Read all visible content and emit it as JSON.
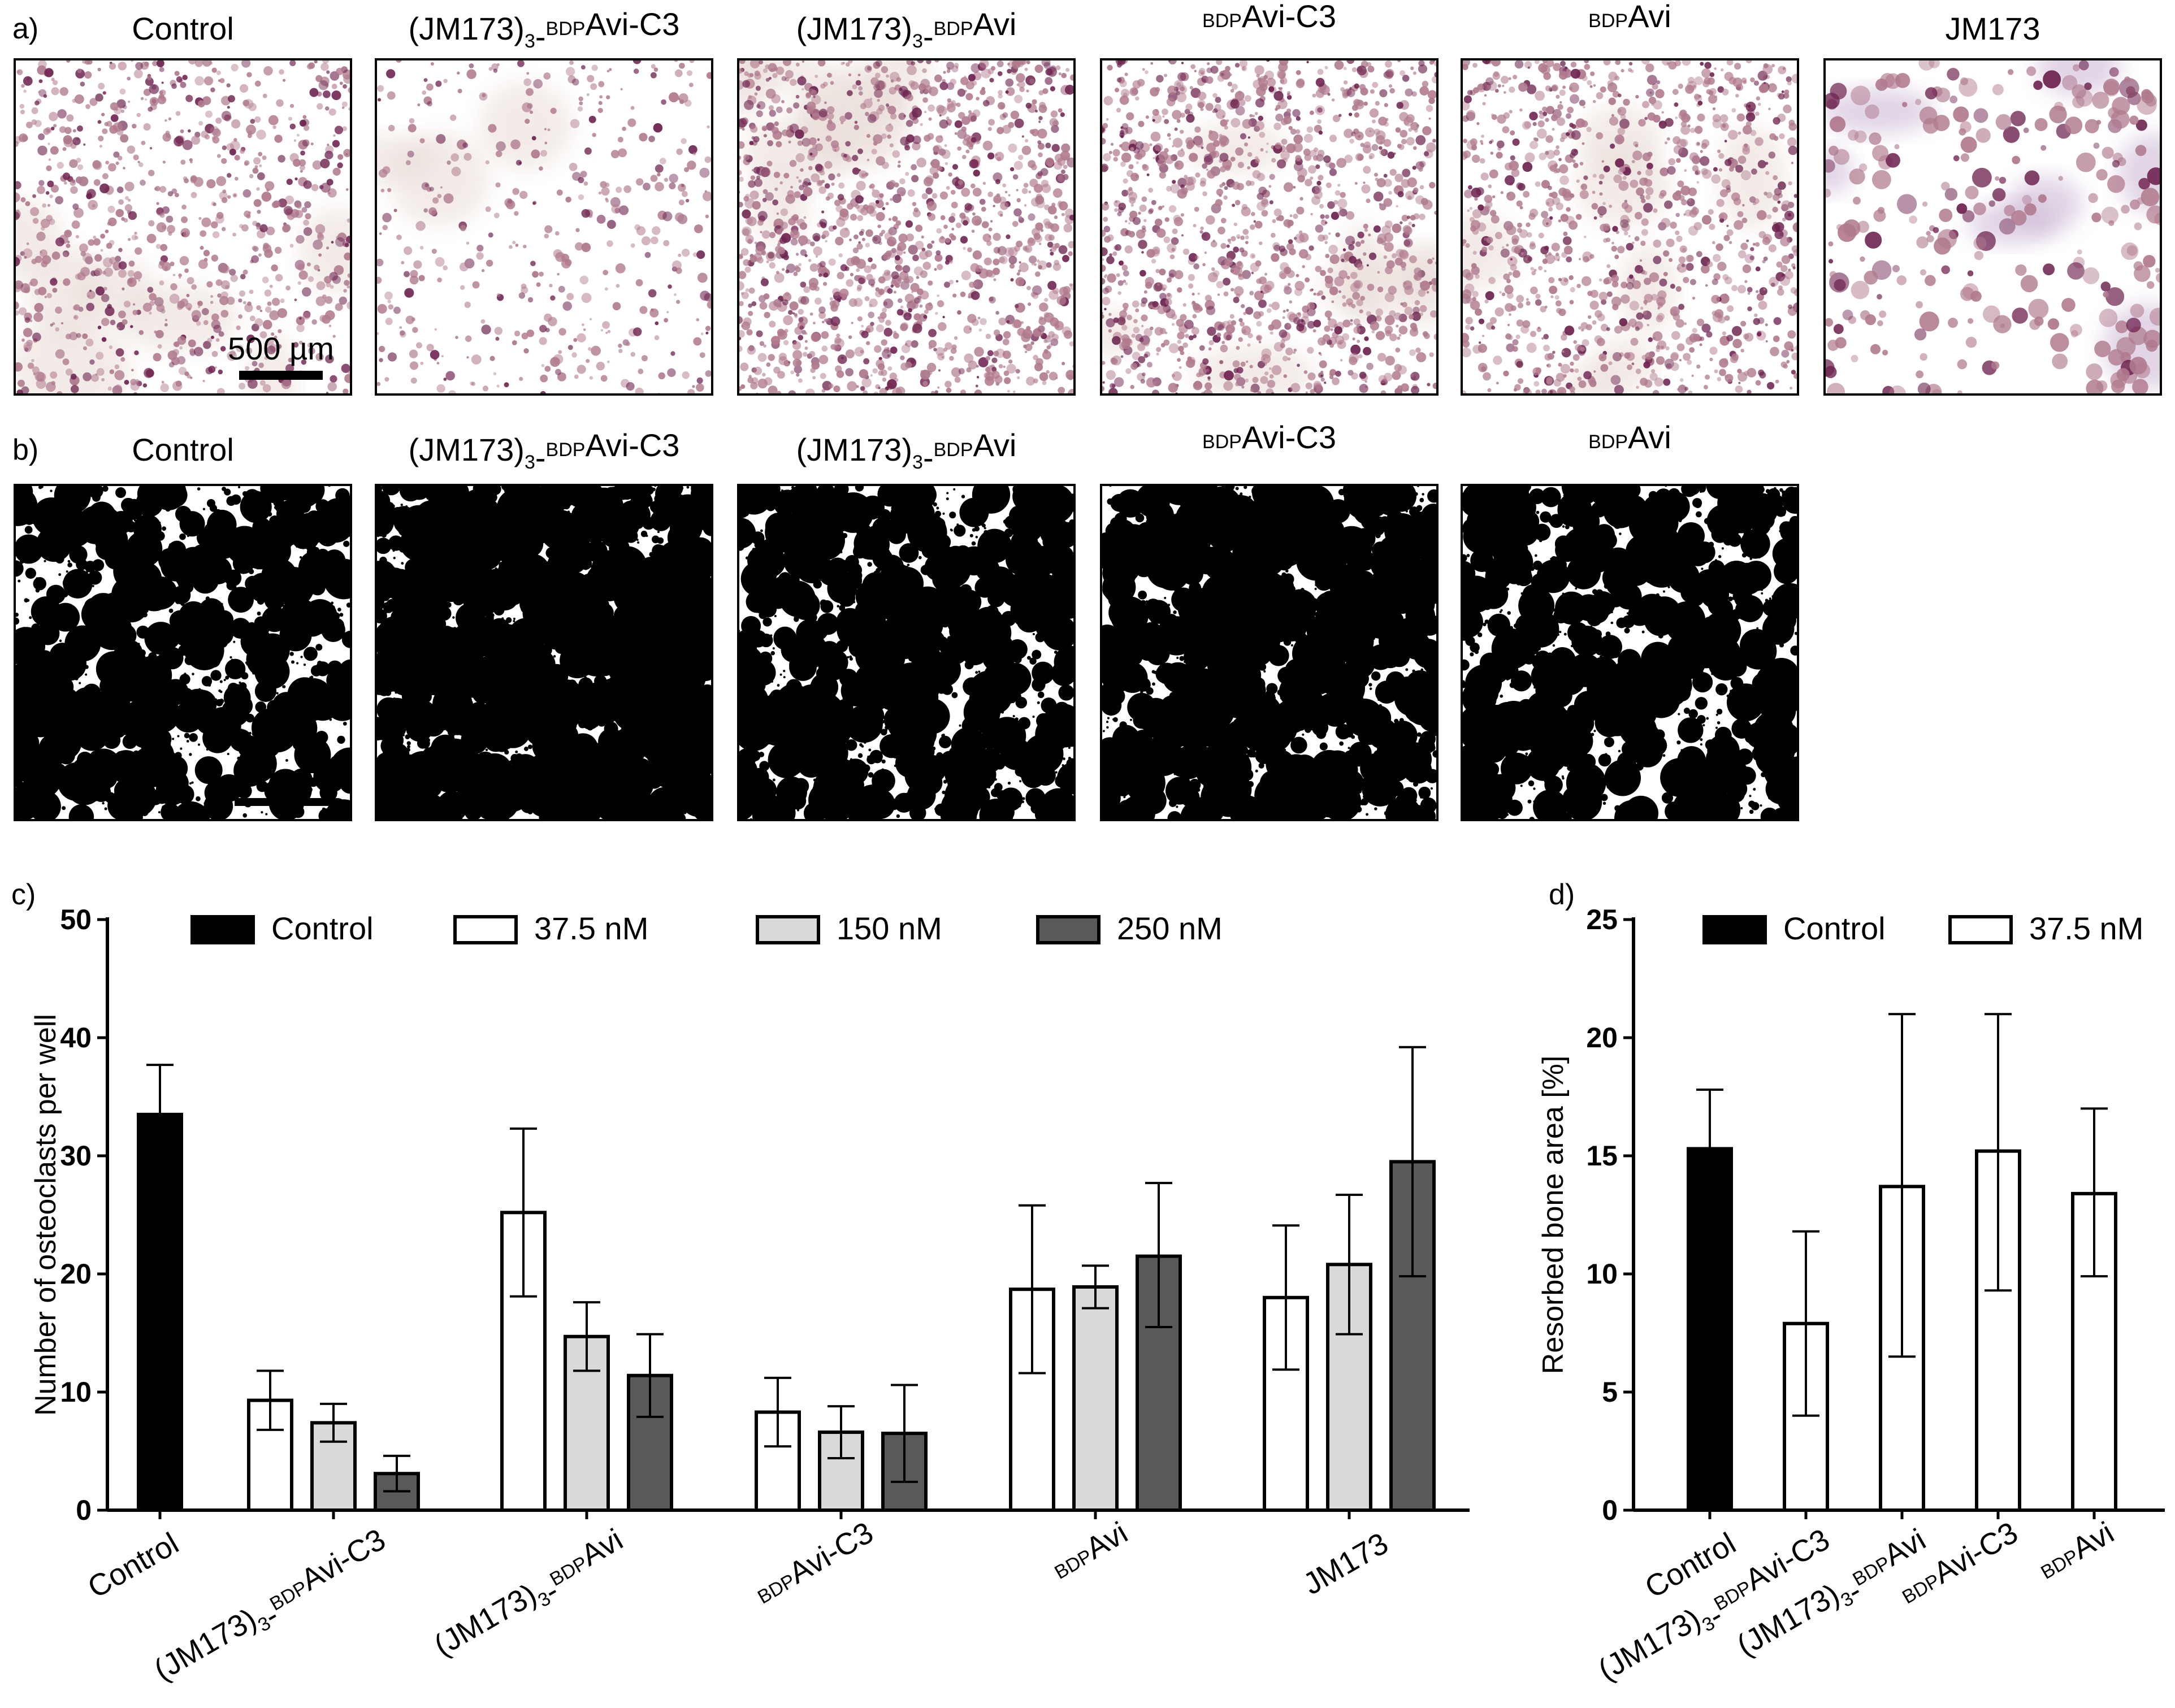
{
  "panels": {
    "a": {
      "letter": "a)",
      "tiles": [
        {
          "title": "Control",
          "parts": [
            {
              "t": "Control"
            }
          ]
        },
        {
          "title": "(JM173)3-BDPAvi-C3",
          "parts": [
            {
              "t": "(JM173)"
            },
            {
              "t": "3",
              "s": "sub"
            },
            {
              "t": "-"
            },
            {
              "t": "BDP",
              "s": "sup"
            },
            {
              "t": "Avi-C3"
            }
          ]
        },
        {
          "title": "(JM173)3-BDPAvi",
          "parts": [
            {
              "t": "(JM173)"
            },
            {
              "t": "3",
              "s": "sub"
            },
            {
              "t": "-"
            },
            {
              "t": "BDP",
              "s": "sup"
            },
            {
              "t": "Avi"
            }
          ]
        },
        {
          "title": "BDPAvi-C3",
          "parts": [
            {
              "t": "BDP",
              "s": "sup"
            },
            {
              "t": "Avi-C3"
            }
          ]
        },
        {
          "title": "BDPAvi",
          "parts": [
            {
              "t": "BDP",
              "s": "sup"
            },
            {
              "t": "Avi"
            }
          ]
        },
        {
          "title": "JM173",
          "parts": [
            {
              "t": "JM173"
            }
          ]
        }
      ],
      "scalebar_label": "500 µm"
    },
    "b": {
      "letter": "b)",
      "tiles": [
        {
          "title": "Control",
          "parts": [
            {
              "t": "Control"
            }
          ]
        },
        {
          "title": "(JM173)3-BDPAvi-C3",
          "parts": [
            {
              "t": "(JM173)"
            },
            {
              "t": "3",
              "s": "sub"
            },
            {
              "t": "-"
            },
            {
              "t": "BDP",
              "s": "sup"
            },
            {
              "t": "Avi-C3"
            }
          ]
        },
        {
          "title": "(JM173)3-BDPAvi",
          "parts": [
            {
              "t": "(JM173)"
            },
            {
              "t": "3",
              "s": "sub"
            },
            {
              "t": "-"
            },
            {
              "t": "BDP",
              "s": "sup"
            },
            {
              "t": "Avi"
            }
          ]
        },
        {
          "title": "BDPAvi-C3",
          "parts": [
            {
              "t": "BDP",
              "s": "sup"
            },
            {
              "t": "Avi-C3"
            }
          ]
        },
        {
          "title": "BDPAvi",
          "parts": [
            {
              "t": "BDP",
              "s": "sup"
            },
            {
              "t": "Avi"
            }
          ]
        }
      ]
    }
  },
  "colors": {
    "control": "#000000",
    "c37_5": "#ffffff",
    "c150": "#d9d9d9",
    "c250": "#595959",
    "stain_pink": "#b07a8e",
    "stain_purple": "#6e2450",
    "pit_black": "#000000"
  },
  "chart_data": [
    {
      "panel_letter": "c)",
      "type": "bar",
      "ylabel": "Number of osteoclasts per well",
      "ylim": [
        0,
        50
      ],
      "yticks": [
        "0",
        "10",
        "20",
        "30",
        "40",
        "50"
      ],
      "legend_position": "top",
      "legend": [
        {
          "name": "Control",
          "color": "#000000"
        },
        {
          "name": "37.5 nM",
          "color": "#ffffff"
        },
        {
          "name": "150 nM",
          "color": "#d9d9d9"
        },
        {
          "name": "250 nM",
          "color": "#595959"
        }
      ],
      "categories": [
        {
          "label": "Control",
          "parts": [
            {
              "t": "Control"
            }
          ]
        },
        {
          "label": "(JM173)3-BDPAvi-C3",
          "parts": [
            {
              "t": "(JM173)"
            },
            {
              "t": "3",
              "s": "sub"
            },
            {
              "t": "-"
            },
            {
              "t": "BDP",
              "s": "sup"
            },
            {
              "t": "Avi-C3"
            }
          ]
        },
        {
          "label": "(JM173)3-BDPAvi",
          "parts": [
            {
              "t": "(JM173)"
            },
            {
              "t": "3",
              "s": "sub"
            },
            {
              "t": "-"
            },
            {
              "t": "BDP",
              "s": "sup"
            },
            {
              "t": "Avi"
            }
          ]
        },
        {
          "label": "BDPAvi-C3",
          "parts": [
            {
              "t": "BDP",
              "s": "sup"
            },
            {
              "t": "Avi-C3"
            }
          ]
        },
        {
          "label": "BDPAvi",
          "parts": [
            {
              "t": "BDP",
              "s": "sup"
            },
            {
              "t": "Avi"
            }
          ]
        },
        {
          "label": "JM173",
          "parts": [
            {
              "t": "JM173"
            }
          ]
        }
      ],
      "bars": [
        {
          "category": 0,
          "series": "Control",
          "value": 33.5,
          "err_low": 29.5,
          "err_high": 37.7
        },
        {
          "category": 1,
          "series": "37.5 nM",
          "value": 9.3,
          "err_low": 6.8,
          "err_high": 11.8
        },
        {
          "category": 1,
          "series": "150 nM",
          "value": 7.4,
          "err_low": 5.8,
          "err_high": 9.0
        },
        {
          "category": 1,
          "series": "250 nM",
          "value": 3.1,
          "err_low": 1.6,
          "err_high": 4.6
        },
        {
          "category": 2,
          "series": "37.5 nM",
          "value": 25.2,
          "err_low": 18.1,
          "err_high": 32.3
        },
        {
          "category": 2,
          "series": "150 nM",
          "value": 14.7,
          "err_low": 11.8,
          "err_high": 17.6
        },
        {
          "category": 2,
          "series": "250 nM",
          "value": 11.4,
          "err_low": 7.9,
          "err_high": 14.9
        },
        {
          "category": 3,
          "series": "37.5 nM",
          "value": 8.3,
          "err_low": 5.4,
          "err_high": 11.2
        },
        {
          "category": 3,
          "series": "150 nM",
          "value": 6.6,
          "err_low": 4.4,
          "err_high": 8.8
        },
        {
          "category": 3,
          "series": "250 nM",
          "value": 6.5,
          "err_low": 2.4,
          "err_high": 10.6
        },
        {
          "category": 4,
          "series": "37.5 nM",
          "value": 18.7,
          "err_low": 11.6,
          "err_high": 25.8
        },
        {
          "category": 4,
          "series": "150 nM",
          "value": 18.9,
          "err_low": 17.1,
          "err_high": 20.7
        },
        {
          "category": 4,
          "series": "250 nM",
          "value": 21.5,
          "err_low": 15.5,
          "err_high": 27.7
        },
        {
          "category": 5,
          "series": "37.5 nM",
          "value": 18.0,
          "err_low": 11.9,
          "err_high": 24.1
        },
        {
          "category": 5,
          "series": "150 nM",
          "value": 20.8,
          "err_low": 14.9,
          "err_high": 26.7
        },
        {
          "category": 5,
          "series": "250 nM",
          "value": 29.5,
          "err_low": 19.8,
          "err_high": 39.2
        }
      ]
    },
    {
      "panel_letter": "d)",
      "type": "bar",
      "ylabel": "Resorbed bone area [%]",
      "ylim": [
        0,
        25
      ],
      "yticks": [
        "0",
        "5",
        "10",
        "15",
        "20",
        "25"
      ],
      "legend_position": "top",
      "legend": [
        {
          "name": "Control",
          "color": "#000000"
        },
        {
          "name": "37.5 nM",
          "color": "#ffffff"
        }
      ],
      "categories": [
        {
          "label": "Control",
          "parts": [
            {
              "t": "Control"
            }
          ]
        },
        {
          "label": "(JM173)3-BDPAvi-C3",
          "parts": [
            {
              "t": "(JM173)"
            },
            {
              "t": "3",
              "s": "sub"
            },
            {
              "t": "-"
            },
            {
              "t": "BDP",
              "s": "sup"
            },
            {
              "t": "Avi-C3"
            }
          ]
        },
        {
          "label": "(JM173)3-BDPAvi",
          "parts": [
            {
              "t": "(JM173)"
            },
            {
              "t": "3",
              "s": "sub"
            },
            {
              "t": "-"
            },
            {
              "t": "BDP",
              "s": "sup"
            },
            {
              "t": "Avi"
            }
          ]
        },
        {
          "label": "BDPAvi-C3",
          "parts": [
            {
              "t": "BDP",
              "s": "sup"
            },
            {
              "t": "Avi-C3"
            }
          ]
        },
        {
          "label": "BDPAvi",
          "parts": [
            {
              "t": "BDP",
              "s": "sup"
            },
            {
              "t": "Avi"
            }
          ]
        }
      ],
      "bars": [
        {
          "category": 0,
          "series": "Control",
          "value": 15.3,
          "err_low": 12.8,
          "err_high": 17.8
        },
        {
          "category": 1,
          "series": "37.5 nM",
          "value": 7.9,
          "err_low": 4.0,
          "err_high": 11.8
        },
        {
          "category": 2,
          "series": "37.5 nM",
          "value": 13.7,
          "err_low": 6.5,
          "err_high": 21.0
        },
        {
          "category": 3,
          "series": "37.5 nM",
          "value": 15.2,
          "err_low": 9.3,
          "err_high": 21.0
        },
        {
          "category": 4,
          "series": "37.5 nM",
          "value": 13.4,
          "err_low": 9.9,
          "err_high": 17.0
        }
      ]
    }
  ]
}
